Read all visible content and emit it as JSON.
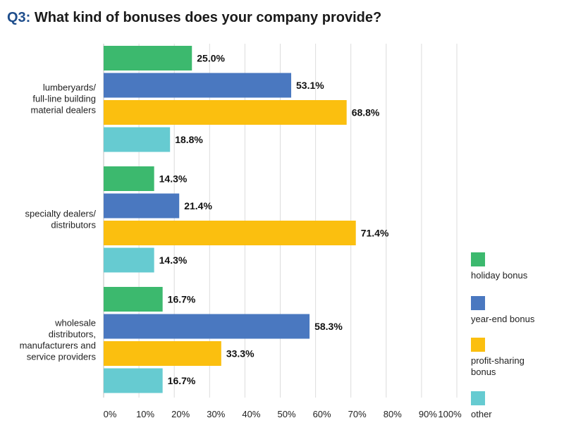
{
  "title": {
    "prefix": "Q3:",
    "text": "What kind of bonuses does your company provide?"
  },
  "chart_data": {
    "type": "bar",
    "orientation": "horizontal",
    "categories": [
      [
        "lumberyards/",
        "full-line building",
        "material dealers"
      ],
      [
        "specialty dealers/",
        "distributors"
      ],
      [
        "wholesale",
        "distributors,",
        "manufacturers and",
        "service providers"
      ]
    ],
    "series": [
      {
        "name": "holiday bonus",
        "color": "#3cb96e",
        "values": [
          25.0,
          14.3,
          16.7
        ]
      },
      {
        "name": "year-end bonus",
        "color": "#4a78c0",
        "values": [
          53.1,
          21.4,
          58.3
        ]
      },
      {
        "name": "profit-sharing bonus",
        "color": "#fbbf0f",
        "values": [
          68.8,
          71.4,
          33.3
        ]
      },
      {
        "name": "other",
        "color": "#66cbd1",
        "values": [
          18.8,
          14.3,
          16.7
        ]
      }
    ],
    "xlim": [
      0,
      100
    ],
    "x_ticks": [
      "0%",
      "10%",
      "20%",
      "30%",
      "40%",
      "50%",
      "60%",
      "70%",
      "80%",
      "90%",
      "100%"
    ],
    "value_format": "0.0%",
    "grid": "vertical",
    "legend_position": "right",
    "legend_labels": [
      [
        "holiday bonus"
      ],
      [
        "year-end bonus"
      ],
      [
        "profit-sharing",
        "bonus"
      ],
      [
        "other"
      ]
    ]
  }
}
